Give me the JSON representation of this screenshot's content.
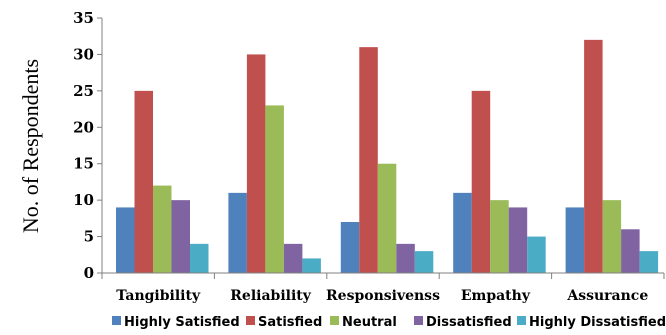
{
  "chart_data": {
    "type": "bar",
    "ylabel": "No. of Respondents",
    "xlabel": "",
    "ylim": [
      0,
      35
    ],
    "yticks": [
      0,
      5,
      10,
      15,
      20,
      25,
      30,
      35
    ],
    "grid": false,
    "legend": "bottom",
    "categories": [
      "Tangibility",
      "Reliability",
      "Responsivenss",
      "Empathy",
      "Assurance"
    ],
    "series": [
      {
        "name": "Highly Satisfied",
        "color": "#4F81BD",
        "values": [
          9,
          11,
          7,
          11,
          9
        ]
      },
      {
        "name": "Satisfied",
        "color": "#C0504D",
        "values": [
          25,
          30,
          31,
          25,
          32
        ]
      },
      {
        "name": "Neutral",
        "color": "#9BBB59",
        "values": [
          12,
          23,
          15,
          10,
          10
        ]
      },
      {
        "name": "Dissatisfied",
        "color": "#8064A2",
        "values": [
          10,
          4,
          4,
          9,
          6
        ]
      },
      {
        "name": "Highly Dissatisfied",
        "color": "#4BACC6",
        "values": [
          4,
          2,
          3,
          5,
          3
        ]
      }
    ]
  }
}
